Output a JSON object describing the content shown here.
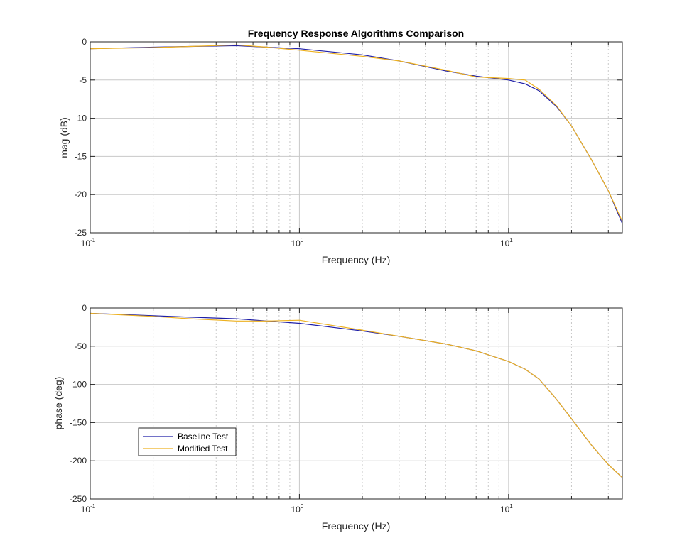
{
  "colors": {
    "baseline": "#1f1fa8",
    "modified": "#edb120",
    "grid": "#c8c8c8",
    "axis": "#262626"
  },
  "chart_data": [
    {
      "type": "line",
      "title": "Frequency Response Algorithms Comparison",
      "xlabel": "Frequency (Hz)",
      "ylabel": "mag (dB)",
      "xscale": "log",
      "xlim": [
        0.1,
        35
      ],
      "ylim": [
        -25,
        0
      ],
      "xtick_labels": [
        {
          "value": 0.1,
          "base": "10",
          "exp": "-1"
        },
        {
          "value": 1,
          "base": "10",
          "exp": "0"
        },
        {
          "value": 10,
          "base": "10",
          "exp": "1"
        }
      ],
      "yticks": [
        0,
        -5,
        -10,
        -15,
        -20,
        -25
      ],
      "ytick_labels": [
        "0",
        "-5",
        "-10",
        "-15",
        "-20",
        "-25"
      ],
      "grid": true,
      "series": [
        {
          "name": "Baseline Test",
          "color_key": "baseline",
          "x": [
            0.1,
            0.2,
            0.3,
            0.5,
            0.7,
            1,
            2,
            3,
            5,
            7,
            10,
            12,
            14,
            17,
            20,
            25,
            30,
            35
          ],
          "y": [
            -0.9,
            -0.7,
            -0.6,
            -0.5,
            -0.7,
            -0.9,
            -1.7,
            -2.5,
            -3.8,
            -4.5,
            -5.0,
            -5.5,
            -6.4,
            -8.5,
            -11.0,
            -15.5,
            -19.5,
            -23.8
          ]
        },
        {
          "name": "Modified Test",
          "color_key": "modified",
          "x": [
            0.1,
            0.2,
            0.3,
            0.5,
            0.7,
            1,
            2,
            3,
            5,
            7,
            10,
            12,
            14,
            17,
            20,
            25,
            30,
            35
          ],
          "y": [
            -0.9,
            -0.75,
            -0.6,
            -0.4,
            -0.7,
            -1.1,
            -1.9,
            -2.5,
            -3.7,
            -4.6,
            -4.8,
            -5.0,
            -6.2,
            -8.4,
            -11.0,
            -15.5,
            -19.5,
            -23.5
          ]
        }
      ]
    },
    {
      "type": "line",
      "title": "",
      "xlabel": "Frequency (Hz)",
      "ylabel": "phase (deg)",
      "xscale": "log",
      "xlim": [
        0.1,
        35
      ],
      "ylim": [
        -250,
        0
      ],
      "xtick_labels": [
        {
          "value": 0.1,
          "base": "10",
          "exp": "-1"
        },
        {
          "value": 1,
          "base": "10",
          "exp": "0"
        },
        {
          "value": 10,
          "base": "10",
          "exp": "1"
        }
      ],
      "yticks": [
        0,
        -50,
        -100,
        -150,
        -200,
        -250
      ],
      "ytick_labels": [
        "0",
        "-50",
        "-100",
        "-150",
        "-200",
        "-250"
      ],
      "grid": true,
      "legend": {
        "placement": "lower-left",
        "entries": [
          "Baseline Test",
          "Modified Test"
        ]
      },
      "series": [
        {
          "name": "Baseline Test",
          "color_key": "baseline",
          "x": [
            0.1,
            0.2,
            0.3,
            0.5,
            0.7,
            1,
            2,
            3,
            5,
            7,
            10,
            12,
            14,
            17,
            20,
            25,
            30,
            35
          ],
          "y": [
            -7,
            -10,
            -12,
            -14,
            -17,
            -20,
            -30,
            -37,
            -47,
            -56,
            -70,
            -80,
            -93,
            -120,
            -145,
            -180,
            -205,
            -222
          ]
        },
        {
          "name": "Modified Test",
          "color_key": "modified",
          "x": [
            0.1,
            0.2,
            0.3,
            0.5,
            0.7,
            1,
            2,
            3,
            5,
            7,
            10,
            12,
            14,
            17,
            20,
            25,
            30,
            35
          ],
          "y": [
            -7,
            -11,
            -14,
            -17,
            -17,
            -16,
            -29,
            -37,
            -47,
            -56,
            -70,
            -80,
            -93,
            -120,
            -145,
            -180,
            -205,
            -222
          ]
        }
      ]
    }
  ]
}
